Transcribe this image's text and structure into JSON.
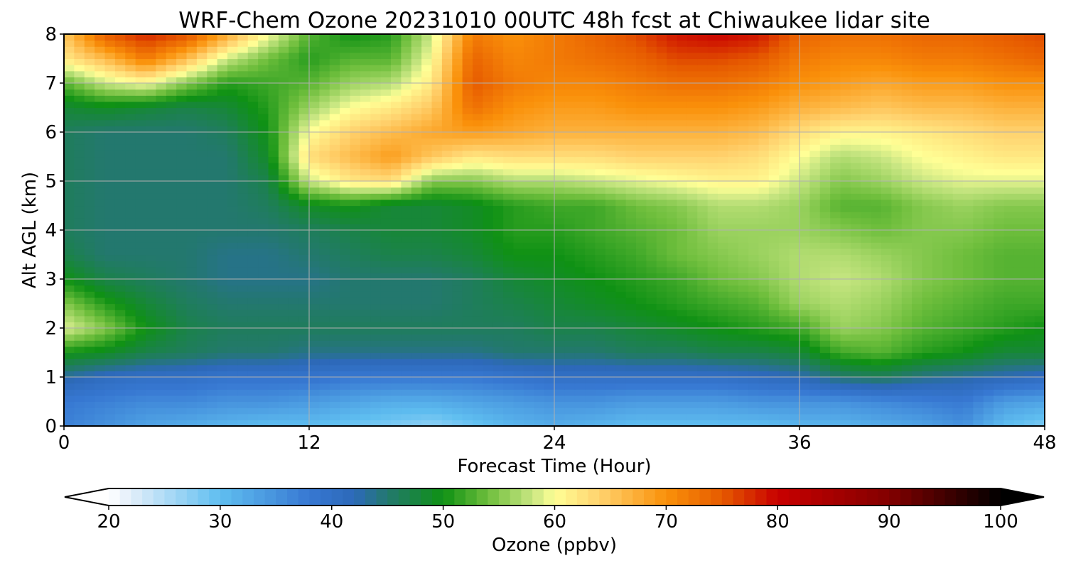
{
  "chart_data": {
    "type": "heatmap",
    "title": "WRF-Chem Ozone  20231010 00UTC 48h fcst at Chiwaukee lidar site",
    "xlabel": "Forecast Time (Hour)",
    "ylabel": "Alt AGL (km)",
    "xlim": [
      0,
      48
    ],
    "ylim": [
      0,
      8
    ],
    "x_ticks": [
      "0",
      "12",
      "24",
      "36",
      "48"
    ],
    "y_ticks": [
      "0",
      "1",
      "2",
      "3",
      "4",
      "5",
      "6",
      "7",
      "8"
    ],
    "grid": true,
    "x_hours": [
      0,
      2,
      4,
      6,
      8,
      10,
      12,
      14,
      16,
      18,
      20,
      22,
      24,
      26,
      28,
      30,
      32,
      34,
      36,
      38,
      40,
      42,
      44,
      46,
      48
    ],
    "alt_km": [
      0,
      0.5,
      1,
      1.5,
      2,
      2.5,
      3,
      3.5,
      4,
      4.5,
      5,
      5.5,
      6,
      6.5,
      7,
      7.5,
      8
    ],
    "ozone_ppbv": [
      [
        37,
        35,
        33,
        32,
        31,
        30,
        30,
        29,
        28,
        27,
        29,
        31,
        32,
        31,
        30,
        30,
        30,
        30,
        31,
        31,
        32,
        33,
        35,
        30,
        28
      ],
      [
        38,
        37,
        36,
        36,
        35,
        35,
        34,
        33,
        32,
        32,
        33,
        34,
        35,
        35,
        34,
        34,
        34,
        35,
        35,
        35,
        36,
        37,
        38,
        34,
        33
      ],
      [
        43,
        41,
        40,
        40,
        39,
        39,
        39,
        38,
        38,
        38,
        38,
        39,
        40,
        40,
        40,
        40,
        40,
        41,
        42,
        45,
        46,
        44,
        43,
        42,
        41
      ],
      [
        50,
        49,
        47,
        46,
        45,
        45,
        44,
        44,
        44,
        44,
        44,
        45,
        45,
        45,
        46,
        46,
        47,
        47,
        48,
        52,
        53,
        51,
        50,
        48,
        48
      ],
      [
        59,
        55,
        50,
        47,
        46,
        46,
        46,
        46,
        46,
        46,
        46,
        46,
        47,
        47,
        48,
        49,
        50,
        51,
        52,
        56,
        55,
        53,
        52,
        51,
        50
      ],
      [
        55,
        51,
        48,
        46,
        45,
        45,
        45,
        45,
        45,
        45,
        46,
        47,
        48,
        49,
        50,
        51,
        52,
        53,
        56,
        57,
        56,
        54,
        53,
        52,
        52
      ],
      [
        50,
        47,
        46,
        45,
        44,
        44,
        44,
        45,
        45,
        45,
        46,
        48,
        49,
        50,
        51,
        52,
        54,
        55,
        57,
        58,
        57,
        55,
        54,
        53,
        53
      ],
      [
        47,
        45,
        45,
        45,
        44,
        44,
        45,
        46,
        47,
        47,
        48,
        50,
        50,
        51,
        52,
        54,
        55,
        56,
        57,
        57,
        56,
        55,
        54,
        53,
        53
      ],
      [
        46,
        45,
        45,
        45,
        45,
        45,
        46,
        47,
        48,
        48,
        49,
        51,
        51,
        52,
        53,
        54,
        56,
        56,
        56,
        55,
        54,
        55,
        55,
        54,
        54
      ],
      [
        46,
        45,
        45,
        45,
        45,
        46,
        49,
        50,
        48,
        48,
        49,
        51,
        52,
        52,
        54,
        55,
        57,
        57,
        56,
        53,
        53,
        55,
        56,
        55,
        55
      ],
      [
        46,
        45,
        45,
        45,
        45,
        47,
        58,
        62,
        63,
        55,
        55,
        57,
        57,
        58,
        59,
        60,
        61,
        61,
        58,
        55,
        56,
        58,
        59,
        59,
        59
      ],
      [
        46,
        45,
        45,
        45,
        45,
        49,
        63,
        66,
        69,
        65,
        62,
        63,
        63,
        63,
        64,
        64,
        64,
        63,
        60,
        57,
        58,
        60,
        61,
        62,
        62
      ],
      [
        46,
        45,
        45,
        45,
        46,
        50,
        60,
        64,
        66,
        68,
        69,
        68,
        67,
        67,
        67,
        67,
        67,
        66,
        63,
        61,
        61,
        62,
        63,
        64,
        64
      ],
      [
        48,
        49,
        48,
        47,
        48,
        51,
        56,
        60,
        62,
        65,
        73,
        70,
        69,
        69,
        70,
        70,
        70,
        69,
        67,
        66,
        65,
        66,
        66,
        67,
        67
      ],
      [
        53,
        58,
        60,
        55,
        51,
        52,
        53,
        56,
        57,
        62,
        75,
        72,
        71,
        71,
        72,
        73,
        73,
        72,
        70,
        69,
        68,
        69,
        69,
        70,
        70
      ],
      [
        62,
        66,
        72,
        66,
        58,
        54,
        51,
        53,
        53,
        60,
        74,
        71,
        72,
        73,
        74,
        76,
        76,
        75,
        72,
        71,
        71,
        72,
        72,
        73,
        74
      ],
      [
        65,
        75,
        78,
        76,
        68,
        60,
        53,
        50,
        51,
        58,
        72,
        70,
        72,
        74,
        76,
        79,
        80,
        79,
        74,
        73,
        73,
        74,
        74,
        75,
        76
      ]
    ],
    "colorbar": {
      "label": "Ozone  (ppbv)",
      "min": 20,
      "max": 100,
      "ticks": [
        "20",
        "30",
        "40",
        "50",
        "60",
        "70",
        "80",
        "90",
        "100"
      ],
      "extend": "both"
    }
  }
}
